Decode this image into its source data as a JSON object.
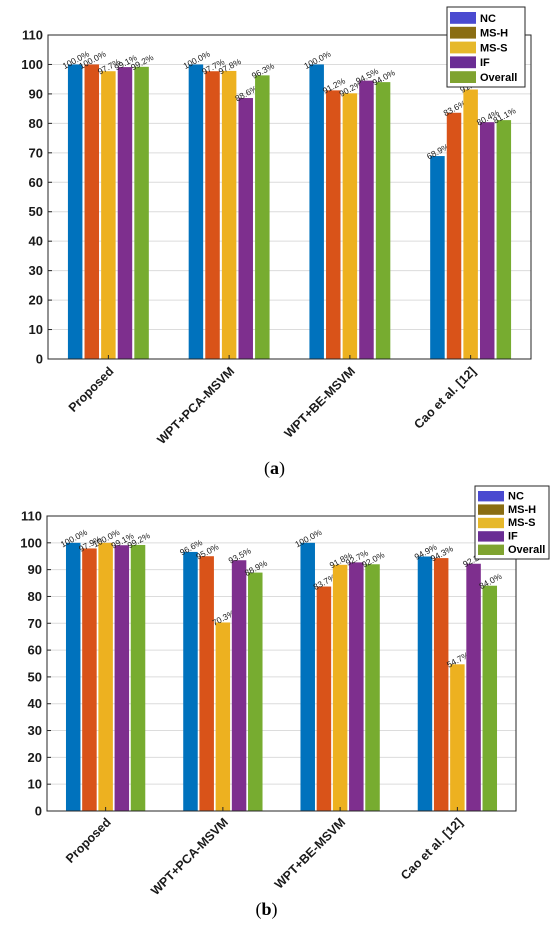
{
  "colors": {
    "NC": "#0072BD",
    "MS-H": "#D95319",
    "MS-S": "#EDB120",
    "IF": "#7E2F8E",
    "Overall": "#77AC30",
    "legend_NC": "#4a4ad0",
    "legend_MS-H": "#8a6d12",
    "legend_MS-S": "#e6b82a",
    "legend_IF": "#6a2d94",
    "legend_Overall": "#7fa330"
  },
  "chart_data": [
    {
      "type": "bar",
      "panel_label": "(a)",
      "panel_letter": "a",
      "categories": [
        "Proposed",
        "WPT+PCA-MSVM",
        "WPT+BE-MSVM",
        "Cao et al. [12]"
      ],
      "series": [
        {
          "name": "NC",
          "values": [
            100.0,
            100.0,
            100.0,
            68.9
          ],
          "labels": [
            "100.0%",
            "100.0%",
            "100.0%",
            "68.9%"
          ]
        },
        {
          "name": "MS-H",
          "values": [
            100.0,
            97.7,
            91.2,
            83.6
          ],
          "labels": [
            "100.0%",
            "97.7%",
            "91.2%",
            "83.6%"
          ]
        },
        {
          "name": "MS-S",
          "values": [
            97.7,
            97.8,
            90.2,
            91.5
          ],
          "labels": [
            "97.7%",
            "97.8%",
            "90.2%",
            "91.5%"
          ]
        },
        {
          "name": "IF",
          "values": [
            99.1,
            88.6,
            94.5,
            80.4
          ],
          "labels": [
            "99.1%",
            "88.6%",
            "94.5%",
            "80.4%"
          ]
        },
        {
          "name": "Overall",
          "values": [
            99.2,
            96.3,
            94.0,
            81.1
          ],
          "labels": [
            "99.2%",
            "96.3%",
            "94.0%",
            "81.1%"
          ]
        }
      ],
      "ylim": [
        0,
        110
      ],
      "yticks": [
        0,
        10,
        20,
        30,
        40,
        50,
        60,
        70,
        80,
        90,
        100,
        110
      ],
      "grid": true,
      "legend": "top-right",
      "legend_entries": [
        "NC",
        "MS-H",
        "MS-S",
        "IF",
        "Overall"
      ]
    },
    {
      "type": "bar",
      "panel_label": "(b)",
      "panel_letter": "b",
      "categories": [
        "Proposed",
        "WPT+PCA-MSVM",
        "WPT+BE-MSVM",
        "Cao et al. [12]"
      ],
      "series": [
        {
          "name": "NC",
          "values": [
            100.0,
            96.6,
            100.0,
            94.9
          ],
          "labels": [
            "100.0%",
            "96.6%",
            "100.0%",
            "94.9%"
          ]
        },
        {
          "name": "MS-H",
          "values": [
            97.9,
            95.0,
            83.7,
            94.3
          ],
          "labels": [
            "97.9%",
            "95.0%",
            "83.7%",
            "94.3%"
          ]
        },
        {
          "name": "MS-S",
          "values": [
            100.0,
            70.3,
            91.8,
            54.7
          ],
          "labels": [
            "100.0%",
            "70.3%",
            "91.8%",
            "54.7%"
          ]
        },
        {
          "name": "IF",
          "values": [
            99.1,
            93.5,
            92.7,
            92.2
          ],
          "labels": [
            "99.1%",
            "93.5%",
            "92.7%",
            "92.2%"
          ]
        },
        {
          "name": "Overall",
          "values": [
            99.2,
            88.9,
            92.0,
            84.0
          ],
          "labels": [
            "99.2%",
            "88.9%",
            "92.0%",
            "84.0%"
          ]
        }
      ],
      "ylim": [
        0,
        110
      ],
      "yticks": [
        0,
        10,
        20,
        30,
        40,
        50,
        60,
        70,
        80,
        90,
        100,
        110
      ],
      "grid": true,
      "legend": "top-right",
      "legend_entries": [
        "NC",
        "MS-H",
        "MS-S",
        "IF",
        "Overall"
      ]
    }
  ]
}
